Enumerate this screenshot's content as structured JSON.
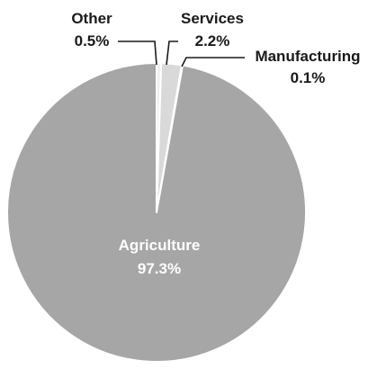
{
  "chart_data": {
    "type": "pie",
    "title": "",
    "slices": [
      {
        "label": "Other",
        "value_text": "0.5%",
        "value": 0.5,
        "color": "#eeeeee"
      },
      {
        "label": "Services",
        "value_text": "2.2%",
        "value": 2.2,
        "color": "#d9d9d9"
      },
      {
        "label": "Manufacturing",
        "value_text": "0.1%",
        "value": 0.1,
        "color": "#bdbdbd"
      },
      {
        "label": "Agriculture",
        "value_text": "97.3%",
        "value": 97.3,
        "color": "#a6a6a6"
      }
    ]
  },
  "colors": {
    "slice_stroke": "#ffffff",
    "label_dark": "#1a1a1a",
    "label_light": "#ffffff",
    "leader_line": "#1a1a1a"
  }
}
